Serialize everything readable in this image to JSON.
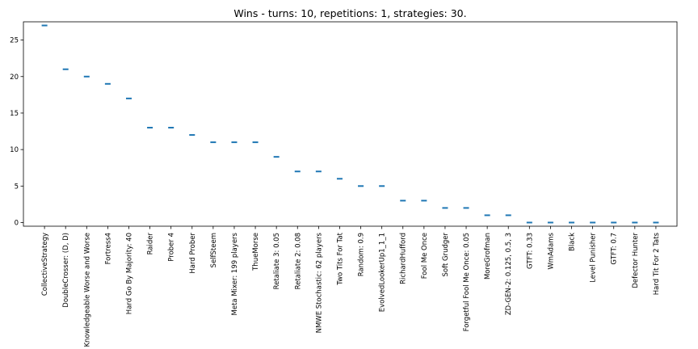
{
  "chart_data": {
    "type": "scatter",
    "title": "Wins - turns: 10, repetitions: 1, strategies: 30.",
    "xlabel": "",
    "ylabel": "",
    "ylim": [
      -0.5,
      27.5
    ],
    "yticks": [
      0,
      5,
      10,
      15,
      20,
      25
    ],
    "grid": false,
    "marker": "horizontal-line",
    "categories": [
      "CollectiveStrategy",
      "DoubleCrosser: (D, D)",
      "Knowledgeable Worse and Worse",
      "Fortress4",
      "Hard Go By Majority: 40",
      "Raider",
      "Prober 4",
      "Hard Prober",
      "SelfSteem",
      "Meta Mixer: 199 players",
      "ThueMorse",
      "Retaliate 3: 0.05",
      "Retaliate 2: 0.08",
      "NMWE Stochastic: 62 players",
      "Two Tits For Tat",
      "Random: 0.9",
      "EvolvedLookerUp1_1_1",
      "RichardHufford",
      "Fool Me Once",
      "Soft Grudger",
      "Forgetful Fool Me Once: 0.05",
      "MoreGrofman",
      "ZD-GEN-2: 0.125, 0.5, 3",
      "GTFT: 0.33",
      "WmAdams",
      "Black",
      "Level Punisher",
      "GTFT: 0.7",
      "Defector Hunter",
      "Hard Tit For 2 Tats"
    ],
    "values": [
      27,
      21,
      20,
      19,
      17,
      13,
      13,
      12,
      11,
      11,
      11,
      9,
      7,
      7,
      6,
      5,
      5,
      3,
      3,
      2,
      2,
      1,
      1,
      0,
      0,
      0,
      0,
      0,
      0,
      0
    ]
  },
  "colors": {
    "marker": "#1f77b4",
    "axis": "#000000"
  }
}
